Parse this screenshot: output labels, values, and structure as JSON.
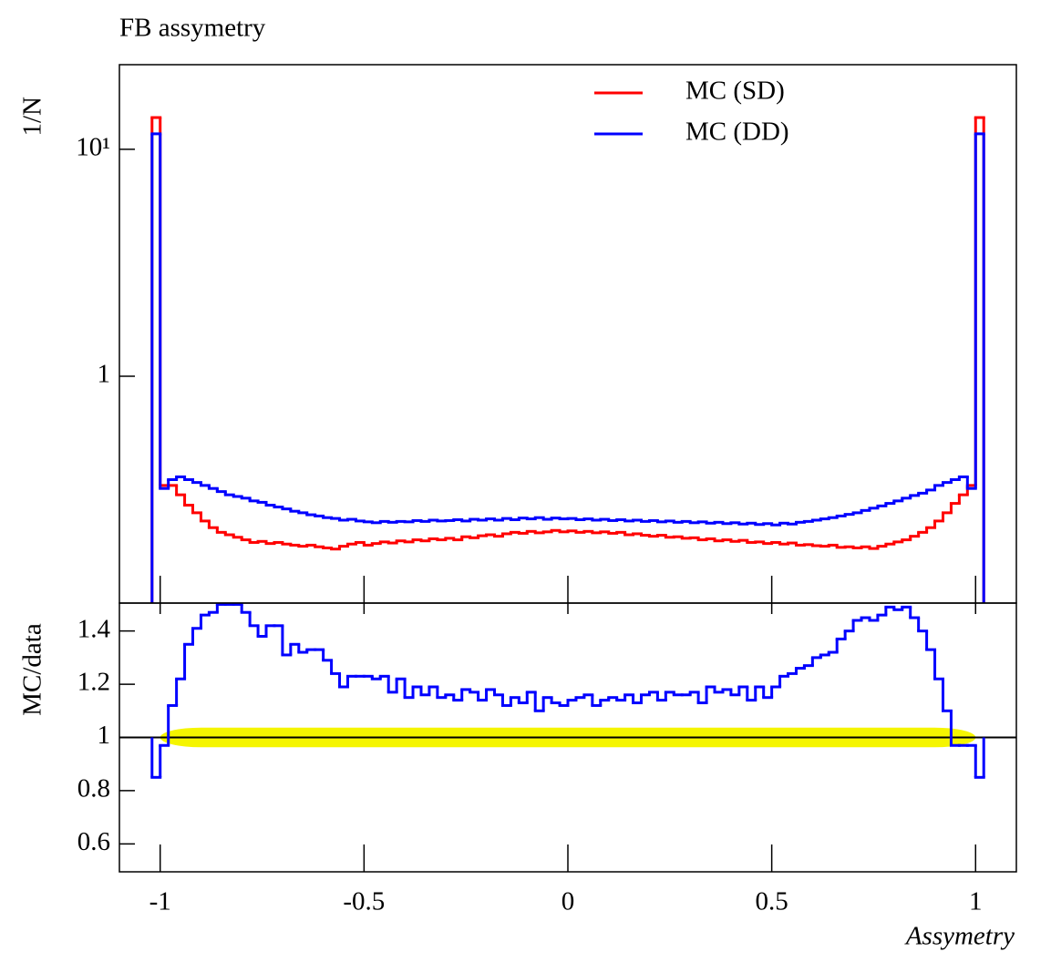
{
  "chart_data": [
    {
      "type": "histogram",
      "title": "FB assymetry",
      "ylabel": "1/N",
      "log_y": true,
      "legend": "top-right",
      "xlim": [
        -1.1,
        1.1
      ],
      "xticks": [
        -1,
        -0.5,
        0,
        0.5,
        1
      ],
      "ylim": [
        0.1,
        23.6
      ],
      "yticks": [
        1,
        {
          "value": 10,
          "label": "10¹"
        }
      ],
      "bins": [
        -1.02,
        -1.0,
        -0.98,
        -0.96,
        -0.94,
        -0.92,
        -0.9,
        -0.88,
        -0.86,
        -0.84,
        -0.82,
        -0.8,
        -0.78,
        -0.76,
        -0.74,
        -0.72,
        -0.7,
        -0.68,
        -0.66,
        -0.64,
        -0.62,
        -0.6,
        -0.58,
        -0.56,
        -0.54,
        -0.52,
        -0.5,
        -0.48,
        -0.46,
        -0.44,
        -0.42,
        -0.4,
        -0.38,
        -0.36,
        -0.34,
        -0.32,
        -0.3,
        -0.28,
        -0.26,
        -0.24,
        -0.22,
        -0.2,
        -0.18,
        -0.16,
        -0.14,
        -0.12,
        -0.1,
        -0.08,
        -0.06,
        -0.04,
        -0.02,
        0,
        0.02,
        0.04,
        0.06,
        0.08,
        0.1,
        0.12,
        0.14,
        0.16,
        0.18,
        0.2,
        0.22,
        0.24,
        0.26,
        0.28,
        0.3,
        0.32,
        0.34,
        0.36,
        0.38,
        0.4,
        0.42,
        0.44,
        0.46,
        0.48,
        0.5,
        0.52,
        0.54,
        0.56,
        0.58,
        0.6,
        0.62,
        0.64,
        0.66,
        0.68,
        0.7,
        0.72,
        0.74,
        0.76,
        0.78,
        0.8,
        0.82,
        0.84,
        0.86,
        0.88,
        0.9,
        0.92,
        0.94,
        0.96,
        0.98,
        1.0,
        1.02
      ],
      "series": [
        {
          "name": "MC (SD)",
          "color": "#ff0000",
          "values": [
            13.8,
            0.33,
            0.33,
            0.3,
            0.27,
            0.25,
            0.23,
            0.215,
            0.205,
            0.2,
            0.195,
            0.19,
            0.185,
            0.187,
            0.183,
            0.185,
            0.182,
            0.18,
            0.178,
            0.18,
            0.177,
            0.175,
            0.173,
            0.178,
            0.182,
            0.185,
            0.18,
            0.183,
            0.186,
            0.184,
            0.188,
            0.186,
            0.19,
            0.188,
            0.192,
            0.19,
            0.193,
            0.19,
            0.196,
            0.194,
            0.198,
            0.2,
            0.197,
            0.202,
            0.205,
            0.203,
            0.207,
            0.204,
            0.206,
            0.209,
            0.206,
            0.208,
            0.205,
            0.207,
            0.204,
            0.206,
            0.203,
            0.205,
            0.2,
            0.202,
            0.199,
            0.197,
            0.199,
            0.195,
            0.196,
            0.193,
            0.194,
            0.19,
            0.192,
            0.188,
            0.19,
            0.187,
            0.189,
            0.185,
            0.186,
            0.183,
            0.185,
            0.182,
            0.184,
            0.18,
            0.181,
            0.179,
            0.178,
            0.18,
            0.176,
            0.177,
            0.175,
            0.177,
            0.174,
            0.178,
            0.182,
            0.186,
            0.19,
            0.197,
            0.205,
            0.215,
            0.23,
            0.25,
            0.275,
            0.3,
            0.33,
            13.8
          ]
        },
        {
          "name": "MC (DD)",
          "color": "#0000ff",
          "values": [
            11.7,
            0.32,
            0.35,
            0.36,
            0.35,
            0.34,
            0.33,
            0.32,
            0.31,
            0.3,
            0.295,
            0.29,
            0.282,
            0.278,
            0.27,
            0.265,
            0.26,
            0.254,
            0.25,
            0.245,
            0.242,
            0.238,
            0.236,
            0.232,
            0.234,
            0.23,
            0.228,
            0.226,
            0.229,
            0.227,
            0.229,
            0.228,
            0.231,
            0.229,
            0.232,
            0.23,
            0.231,
            0.233,
            0.23,
            0.234,
            0.232,
            0.235,
            0.232,
            0.236,
            0.233,
            0.237,
            0.235,
            0.238,
            0.234,
            0.237,
            0.235,
            0.236,
            0.233,
            0.235,
            0.232,
            0.234,
            0.231,
            0.233,
            0.23,
            0.232,
            0.229,
            0.231,
            0.228,
            0.23,
            0.227,
            0.229,
            0.226,
            0.228,
            0.225,
            0.227,
            0.224,
            0.226,
            0.223,
            0.225,
            0.222,
            0.224,
            0.221,
            0.225,
            0.223,
            0.227,
            0.229,
            0.232,
            0.235,
            0.238,
            0.242,
            0.246,
            0.25,
            0.256,
            0.262,
            0.268,
            0.275,
            0.282,
            0.29,
            0.298,
            0.305,
            0.315,
            0.33,
            0.34,
            0.35,
            0.36,
            0.32,
            11.7
          ]
        }
      ]
    },
    {
      "type": "histogram",
      "ylabel": "MC/data",
      "xlabel": "Assymetry",
      "xlim": [
        -1.1,
        1.1
      ],
      "xticks": [
        -1,
        -0.5,
        0,
        0.5,
        1
      ],
      "ylim": [
        0.495,
        1.505
      ],
      "yticks": [
        0.6,
        0.8,
        1,
        1.2,
        1.4
      ],
      "hline": 1,
      "band": {
        "x": [
          -1,
          1
        ],
        "y": [
          0.963,
          1.037
        ],
        "color": "#f5f500"
      },
      "bins": [
        -1.02,
        -1.0,
        -0.98,
        -0.96,
        -0.94,
        -0.92,
        -0.9,
        -0.88,
        -0.86,
        -0.84,
        -0.82,
        -0.8,
        -0.78,
        -0.76,
        -0.74,
        -0.72,
        -0.7,
        -0.68,
        -0.66,
        -0.64,
        -0.62,
        -0.6,
        -0.58,
        -0.56,
        -0.54,
        -0.52,
        -0.5,
        -0.48,
        -0.46,
        -0.44,
        -0.42,
        -0.4,
        -0.38,
        -0.36,
        -0.34,
        -0.32,
        -0.3,
        -0.28,
        -0.26,
        -0.24,
        -0.22,
        -0.2,
        -0.18,
        -0.16,
        -0.14,
        -0.12,
        -0.1,
        -0.08,
        -0.06,
        -0.04,
        -0.02,
        0,
        0.02,
        0.04,
        0.06,
        0.08,
        0.1,
        0.12,
        0.14,
        0.16,
        0.18,
        0.2,
        0.22,
        0.24,
        0.26,
        0.28,
        0.3,
        0.32,
        0.34,
        0.36,
        0.38,
        0.4,
        0.42,
        0.44,
        0.46,
        0.48,
        0.5,
        0.52,
        0.54,
        0.56,
        0.58,
        0.6,
        0.62,
        0.64,
        0.66,
        0.68,
        0.7,
        0.72,
        0.74,
        0.76,
        0.78,
        0.8,
        0.82,
        0.84,
        0.86,
        0.88,
        0.9,
        0.92,
        0.94,
        0.96,
        0.98,
        1.0,
        1.02
      ],
      "series": [
        {
          "color": "#0000ff",
          "values": [
            0.85,
            0.97,
            1.12,
            1.22,
            1.35,
            1.41,
            1.46,
            1.47,
            1.5,
            1.5,
            1.5,
            1.47,
            1.42,
            1.38,
            1.42,
            1.42,
            1.31,
            1.35,
            1.32,
            1.33,
            1.33,
            1.29,
            1.24,
            1.19,
            1.23,
            1.23,
            1.23,
            1.22,
            1.23,
            1.17,
            1.22,
            1.15,
            1.19,
            1.16,
            1.19,
            1.15,
            1.16,
            1.14,
            1.18,
            1.17,
            1.14,
            1.18,
            1.16,
            1.12,
            1.15,
            1.13,
            1.17,
            1.1,
            1.15,
            1.13,
            1.12,
            1.14,
            1.15,
            1.16,
            1.12,
            1.14,
            1.15,
            1.14,
            1.16,
            1.13,
            1.16,
            1.17,
            1.14,
            1.17,
            1.16,
            1.16,
            1.17,
            1.13,
            1.19,
            1.17,
            1.18,
            1.16,
            1.19,
            1.14,
            1.19,
            1.15,
            1.19,
            1.23,
            1.24,
            1.26,
            1.27,
            1.3,
            1.31,
            1.32,
            1.37,
            1.4,
            1.44,
            1.45,
            1.44,
            1.46,
            1.49,
            1.48,
            1.49,
            1.45,
            1.4,
            1.33,
            1.22,
            1.1,
            0.97,
            0.97,
            0.97,
            0.85
          ]
        }
      ]
    }
  ]
}
